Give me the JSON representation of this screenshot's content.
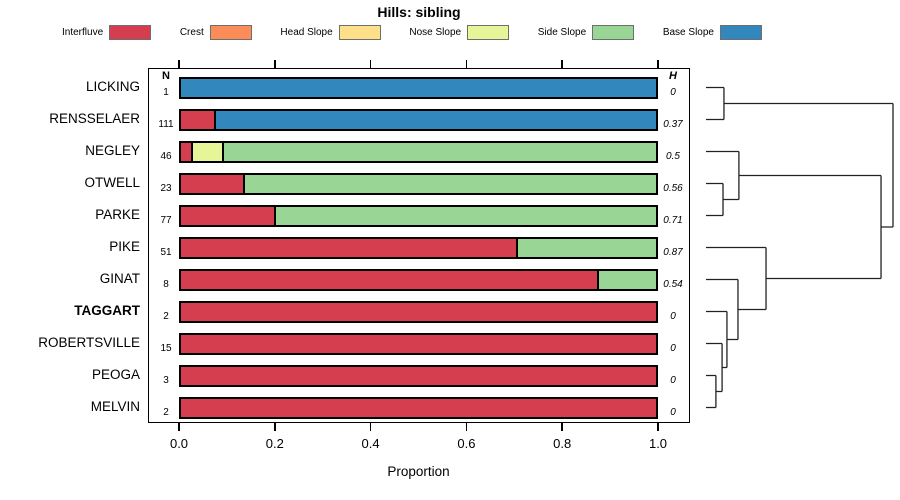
{
  "chart_data": {
    "type": "bar",
    "orientation": "horizontal",
    "stacked": true,
    "title": "Hills: sibling",
    "xlabel": "Proportion",
    "xlim": [
      0.0,
      1.0
    ],
    "x_ticks": [
      "0.0",
      "0.2",
      "0.4",
      "0.6",
      "0.8",
      "1.0"
    ],
    "grid": false,
    "legend_position": "top",
    "n_header": "N",
    "h_header": "H",
    "legend": [
      {
        "label": "Interfluve",
        "color": "#D53E4F"
      },
      {
        "label": "Crest",
        "color": "#FC8D59"
      },
      {
        "label": "Head Slope",
        "color": "#FEE08B"
      },
      {
        "label": "Nose Slope",
        "color": "#E6F598"
      },
      {
        "label": "Side Slope",
        "color": "#99D594"
      },
      {
        "label": "Base Slope",
        "color": "#3288BD"
      }
    ],
    "categories": [
      "LICKING",
      "RENSSELAER",
      "NEGLEY",
      "OTWELL",
      "PARKE",
      "PIKE",
      "GINAT",
      "TAGGART",
      "ROBERTSVILLE",
      "PEOGA",
      "MELVIN"
    ],
    "bold_category": "TAGGART",
    "n_values": [
      "1",
      "111",
      "46",
      "23",
      "77",
      "51",
      "8",
      "2",
      "15",
      "3",
      "2"
    ],
    "h_values": [
      "0",
      "0.37",
      "0.5",
      "0.56",
      "0.71",
      "0.87",
      "0.54",
      "0",
      "0",
      "0",
      "0"
    ],
    "series": [
      {
        "name": "Interfluve",
        "values": [
          0,
          0.07,
          0.022,
          0.13,
          0.195,
          0.706,
          0.875,
          1,
          1,
          1,
          1
        ]
      },
      {
        "name": "Crest",
        "values": [
          0,
          0,
          0,
          0,
          0,
          0,
          0,
          0,
          0,
          0,
          0
        ]
      },
      {
        "name": "Head Slope",
        "values": [
          0,
          0,
          0,
          0,
          0,
          0,
          0,
          0,
          0,
          0,
          0
        ]
      },
      {
        "name": "Nose Slope",
        "values": [
          0,
          0,
          0.065,
          0,
          0,
          0,
          0,
          0,
          0,
          0,
          0
        ]
      },
      {
        "name": "Side Slope",
        "values": [
          0,
          0,
          0.913,
          0.87,
          0.805,
          0.294,
          0.125,
          0,
          0,
          0,
          0
        ]
      },
      {
        "name": "Base Slope",
        "values": [
          1,
          0.93,
          0,
          0,
          0,
          0,
          0,
          0,
          0,
          0,
          0
        ]
      }
    ],
    "dendrogram": {
      "merges": [
        {
          "a": 9,
          "b": 10,
          "h": 0.053
        },
        {
          "a": 8,
          "b": "m0",
          "h": 0.086
        },
        {
          "a": 7,
          "b": "m1",
          "h": 0.112
        },
        {
          "a": 6,
          "b": "m2",
          "h": 0.171
        },
        {
          "a": 5,
          "b": "m3",
          "h": 0.321
        },
        {
          "a": 3,
          "b": 4,
          "h": 0.091
        },
        {
          "a": 2,
          "b": "m5",
          "h": 0.176
        },
        {
          "a": 0,
          "b": 1,
          "h": 0.096
        },
        {
          "a": "m6",
          "b": "m4",
          "h": 0.936
        },
        {
          "a": "m7",
          "b": "m8",
          "h": 1.0
        }
      ]
    },
    "line_color": "#222222",
    "bar_border_color": "#000000"
  }
}
